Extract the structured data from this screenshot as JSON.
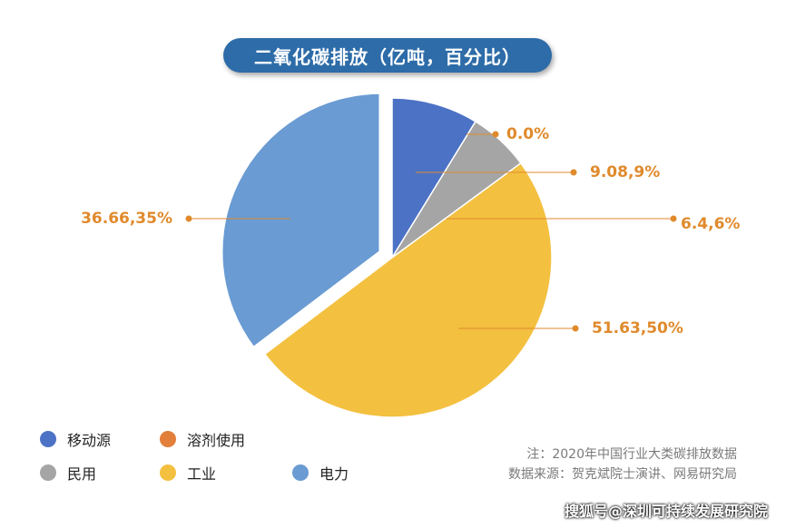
{
  "title": "二氧化碳排放（亿吨，百分比）",
  "chart_data": {
    "type": "pie",
    "title": "二氧化碳排放（亿吨，百分比）",
    "slices": [
      {
        "name": "移动源",
        "value": 9.08,
        "percent": 9,
        "label": "9.08,9%",
        "color": "#4c72c5"
      },
      {
        "name": "民用",
        "value": 6.4,
        "percent": 6,
        "label": "6.4,6%",
        "color": "#a5a5a5"
      },
      {
        "name": "工业",
        "value": 51.63,
        "percent": 50,
        "label": "51.63,50%",
        "color": "#f3c040"
      },
      {
        "name": "电力",
        "value": 36.66,
        "percent": 35,
        "label": "36.66,35%",
        "color": "#6a9bd3",
        "exploded": true
      },
      {
        "name": "溶剂使用",
        "value": 0.0,
        "percent": 0,
        "label": "0.0%",
        "color": "#e27f3a"
      }
    ],
    "label_color": "#e08a2c"
  },
  "legend": [
    {
      "label": "移动源",
      "color": "#4c72c5"
    },
    {
      "label": "溶剂使用",
      "color": "#e27f3a"
    },
    {
      "label": "民用",
      "color": "#a5a5a5"
    },
    {
      "label": "工业",
      "color": "#f3c040"
    },
    {
      "label": "电力",
      "color": "#6a9bd3"
    }
  ],
  "notes": {
    "line1": "注：2020年中国行业大类碳排放数据",
    "line2": "数据来源：贺克斌院士演讲、网易研究局"
  },
  "watermark": "搜狐号@深圳可持续发展研究院"
}
